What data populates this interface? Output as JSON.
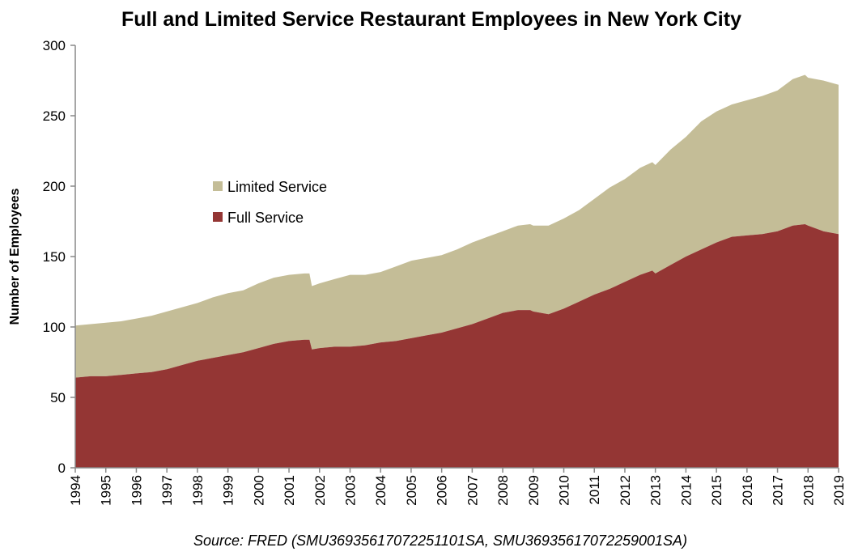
{
  "chart_data": {
    "type": "area",
    "title": "Full and Limited Service Restaurant Employees in New York City",
    "xlabel": "",
    "ylabel": "Number of Employees",
    "source": "Source: FRED (SMU36935617072251101SA, SMU36935617072259001SA)",
    "ylim": [
      0,
      300
    ],
    "yticks": [
      "0",
      "50",
      "100",
      "150",
      "200",
      "250",
      "300"
    ],
    "xlim": [
      1994,
      2019
    ],
    "xticks": [
      "1994",
      "1995",
      "1996",
      "1997",
      "1998",
      "1999",
      "2000",
      "2001",
      "2002",
      "2003",
      "2004",
      "2005",
      "2006",
      "2007",
      "2008",
      "2009",
      "2010",
      "2011",
      "2012",
      "2013",
      "2014",
      "2015",
      "2016",
      "2017",
      "2018",
      "2019"
    ],
    "stacked": true,
    "grid": false,
    "legend_position": "center-left",
    "x": [
      1994.0,
      1994.5,
      1995.0,
      1995.5,
      1996.0,
      1996.5,
      1997.0,
      1997.5,
      1998.0,
      1998.5,
      1999.0,
      1999.5,
      2000.0,
      2000.5,
      2001.0,
      2001.5,
      2001.67,
      2001.75,
      2002.0,
      2002.5,
      2003.0,
      2003.5,
      2004.0,
      2004.5,
      2005.0,
      2005.5,
      2006.0,
      2006.5,
      2007.0,
      2007.5,
      2008.0,
      2008.5,
      2008.9,
      2009.0,
      2009.5,
      2010.0,
      2010.5,
      2011.0,
      2011.5,
      2012.0,
      2012.5,
      2012.9,
      2013.0,
      2013.5,
      2014.0,
      2014.5,
      2015.0,
      2015.5,
      2016.0,
      2016.5,
      2017.0,
      2017.5,
      2017.9,
      2018.0,
      2018.5,
      2019.0
    ],
    "series": [
      {
        "name": "Full Service",
        "color": "#943634",
        "values": [
          64,
          65,
          65,
          66,
          67,
          68,
          70,
          73,
          76,
          78,
          80,
          82,
          85,
          88,
          90,
          91,
          91,
          84,
          85,
          86,
          86,
          87,
          89,
          90,
          92,
          94,
          96,
          99,
          102,
          106,
          110,
          112,
          112,
          111,
          109,
          113,
          118,
          123,
          127,
          132,
          137,
          140,
          138,
          144,
          150,
          155,
          160,
          164,
          165,
          166,
          168,
          172,
          173,
          172,
          168,
          166
        ]
      },
      {
        "name": "Limited Service",
        "color": "#c4bd97",
        "values": [
          37,
          37,
          38,
          38,
          39,
          40,
          41,
          41,
          41,
          43,
          44,
          44,
          46,
          47,
          47,
          47,
          47,
          45,
          46,
          48,
          51,
          50,
          50,
          53,
          55,
          55,
          55,
          56,
          58,
          58,
          58,
          60,
          61,
          61,
          63,
          64,
          65,
          68,
          72,
          73,
          76,
          77,
          77,
          82,
          85,
          91,
          93,
          94,
          96,
          98,
          100,
          104,
          106,
          105,
          107,
          106
        ]
      }
    ]
  }
}
